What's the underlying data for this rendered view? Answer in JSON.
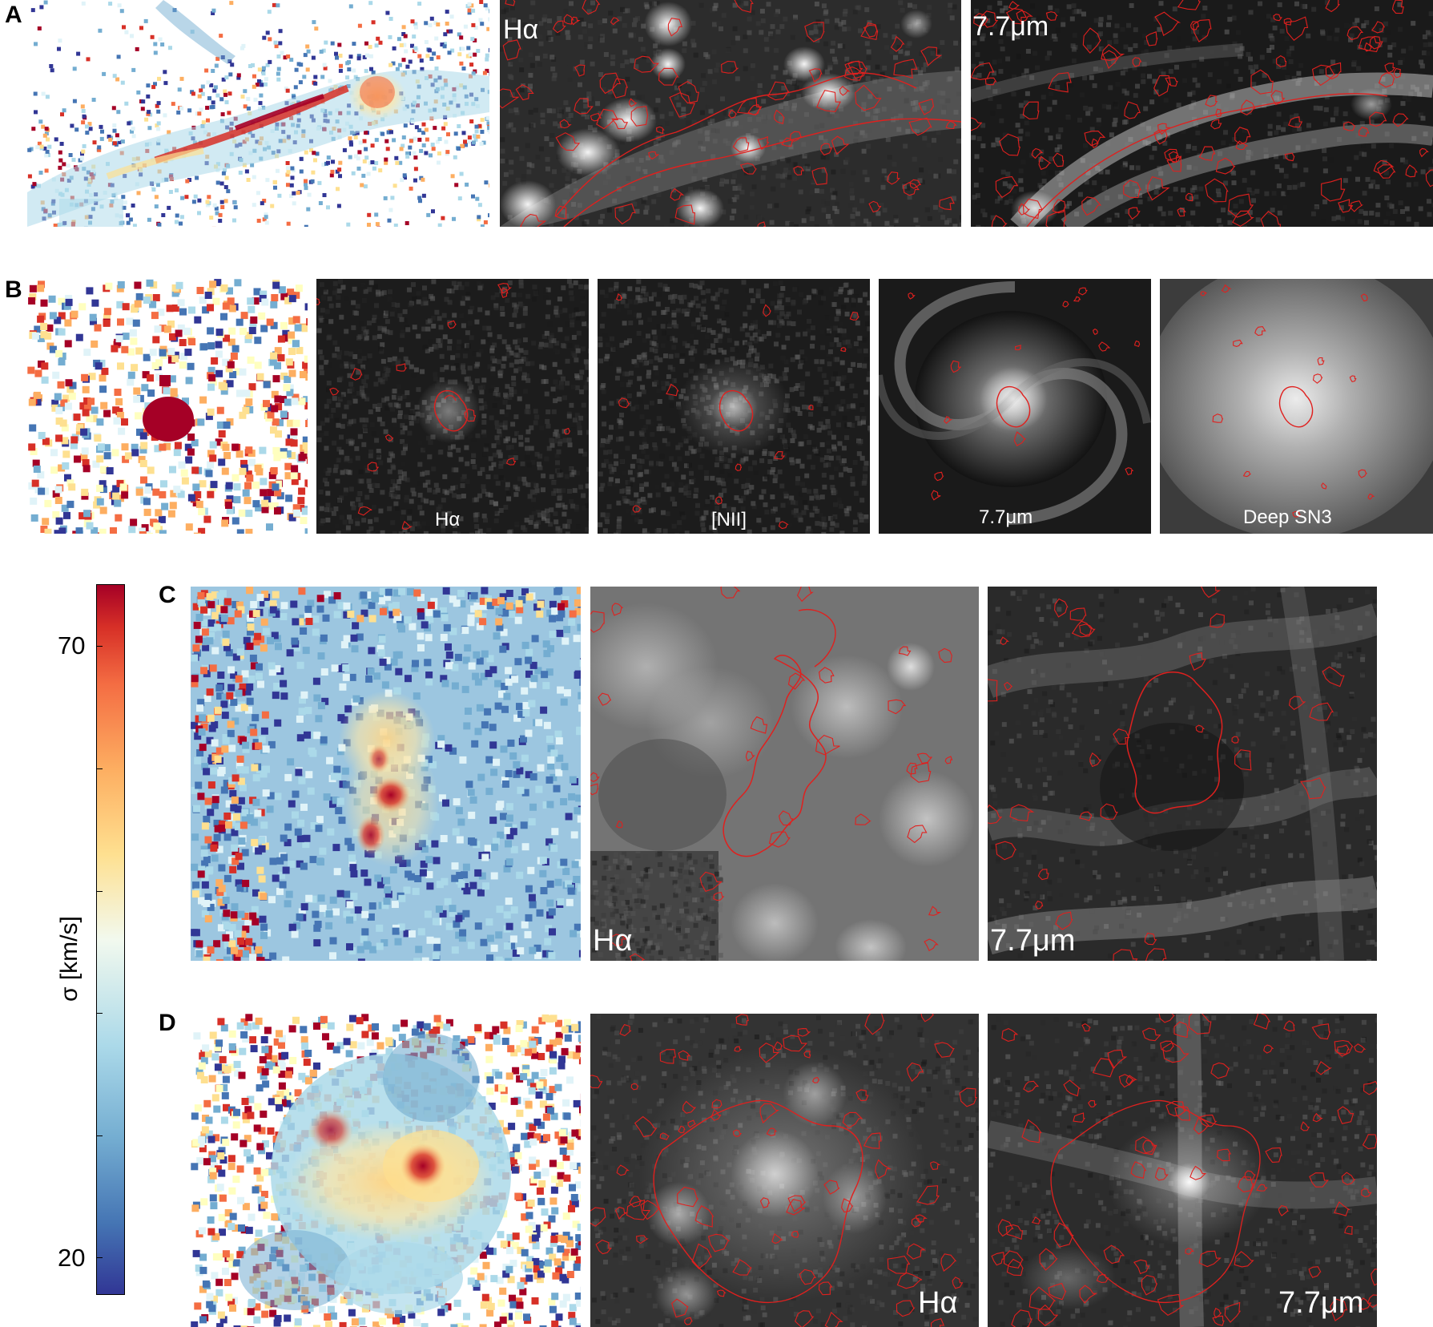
{
  "panels": {
    "a": {
      "letter": "A",
      "halpha": "Hα",
      "pah": "7.7μm"
    },
    "b": {
      "letter": "B",
      "halpha": "Hα",
      "nii": "[NII]",
      "pah": "7.7μm",
      "deep": "Deep SN3"
    },
    "c": {
      "letter": "C",
      "halpha": "Hα",
      "pah": "7.7μm"
    },
    "d": {
      "letter": "D",
      "halpha": "Hα",
      "pah": "7.7μm"
    }
  },
  "colorbar": {
    "label": "σ [km/s]",
    "tick_top": "70",
    "tick_bottom": "20",
    "colormap": "RdYlBu_r"
  },
  "colors": {
    "contour": "#e0201e",
    "high": "#a50026",
    "low": "#313695"
  }
}
